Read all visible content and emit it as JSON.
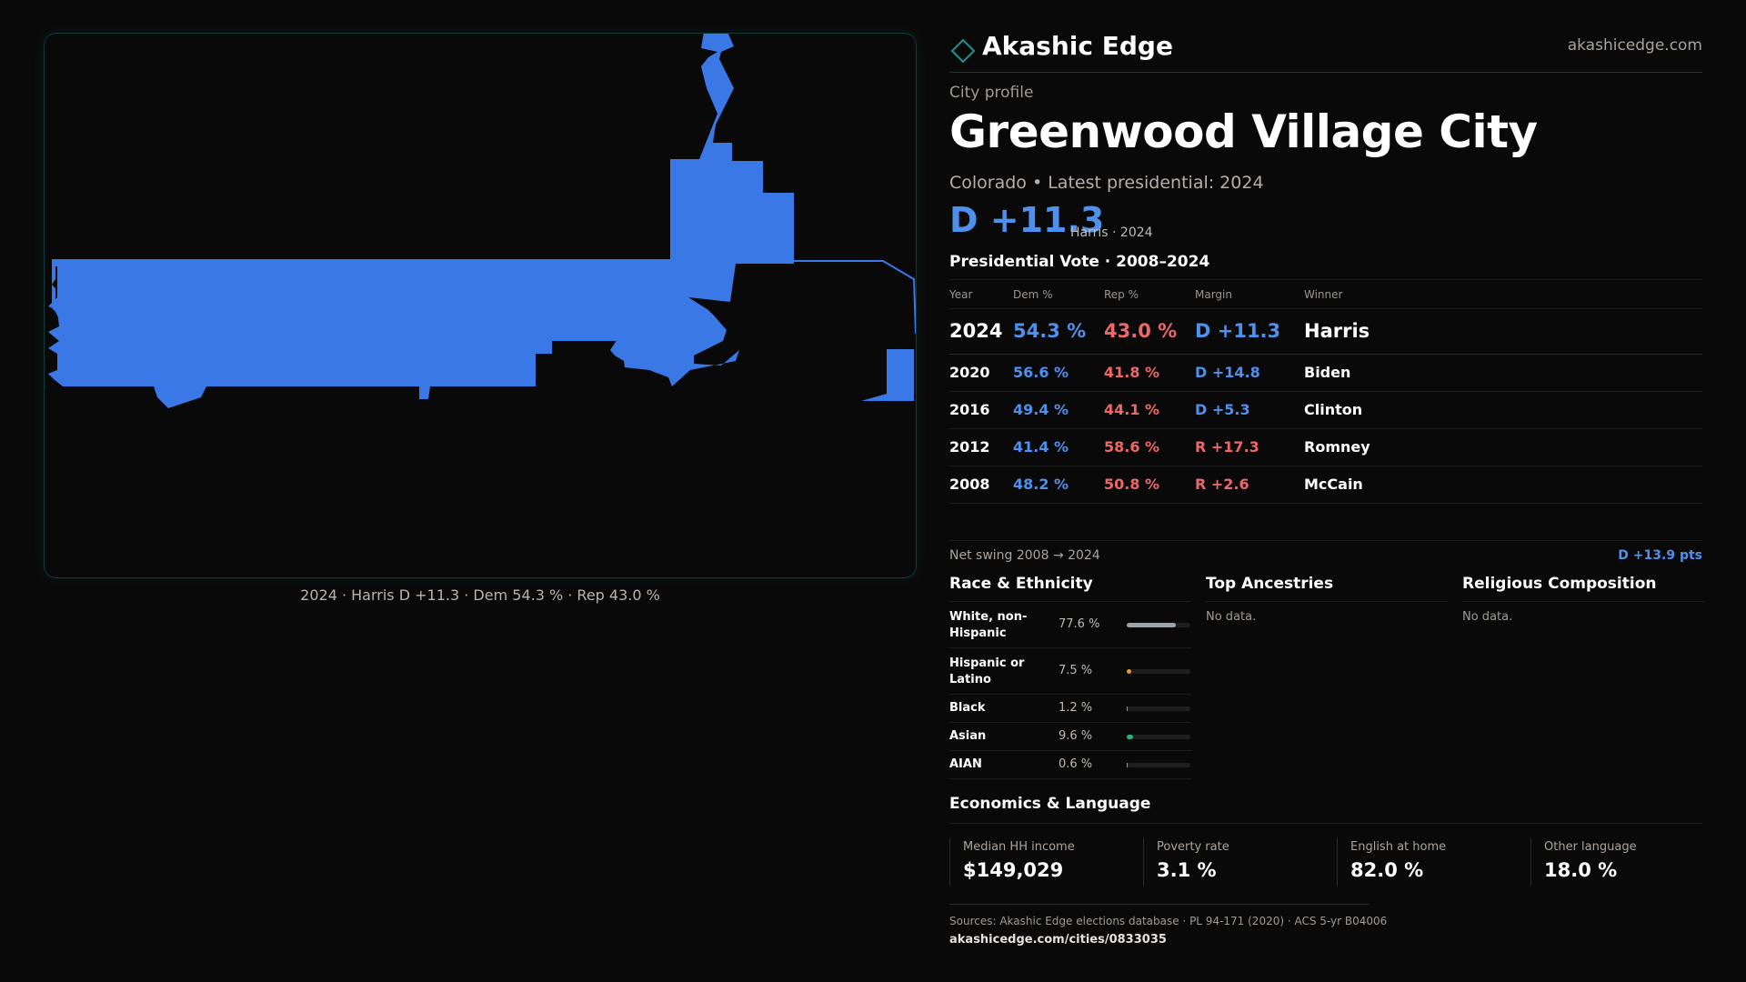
{
  "brand": {
    "name": "Akashic Edge",
    "url": "akashicedge.com",
    "logo_icon": "diamond-icon",
    "accent": "#1f8f94"
  },
  "profile": {
    "kicker": "City profile",
    "title": "Greenwood Village City",
    "subtitle": "Colorado • Latest presidential: 2024",
    "headline_margin": "D +11.3",
    "headline_note": "Harris · 2024"
  },
  "map": {
    "fill_color": "#3a78e6",
    "caption": "2024 · Harris D +11.3 · Dem 54.3 % · Rep 43.0 %"
  },
  "vote_table": {
    "title": "Presidential Vote · 2008–2024",
    "headers": {
      "year": "Year",
      "dem": "Dem %",
      "rep": "Rep %",
      "margin": "Margin",
      "winner": "Winner"
    },
    "rows": [
      {
        "year": "2024",
        "dem": "54.3 %",
        "rep": "43.0 %",
        "margin": "D +11.3",
        "winner": "Harris",
        "party": "D"
      },
      {
        "year": "2020",
        "dem": "56.6 %",
        "rep": "41.8 %",
        "margin": "D +14.8",
        "winner": "Biden",
        "party": "D"
      },
      {
        "year": "2016",
        "dem": "49.4 %",
        "rep": "44.1 %",
        "margin": "D +5.3",
        "winner": "Clinton",
        "party": "D"
      },
      {
        "year": "2012",
        "dem": "41.4 %",
        "rep": "58.6 %",
        "margin": "R +17.3",
        "winner": "Romney",
        "party": "R"
      },
      {
        "year": "2008",
        "dem": "48.2 %",
        "rep": "50.8 %",
        "margin": "R +2.6",
        "winner": "McCain",
        "party": "R"
      }
    ],
    "swing_label": "Net swing 2008 → 2024",
    "swing_value": "D +13.9 pts"
  },
  "colors": {
    "dem": "#4f90ec",
    "rep": "#ec6868"
  },
  "race": {
    "title": "Race & Ethnicity",
    "rows": [
      {
        "label": "White, non-Hispanic",
        "pct": "77.6 %",
        "value": 77.6,
        "color": "#9aa3ad"
      },
      {
        "label": "Hispanic or Latino",
        "pct": "7.5 %",
        "value": 7.5,
        "color": "#e39a2a"
      },
      {
        "label": "Black",
        "pct": "1.2 %",
        "value": 1.2,
        "color": "#8a8fe0"
      },
      {
        "label": "Asian",
        "pct": "9.6 %",
        "value": 9.6,
        "color": "#22b38a"
      },
      {
        "label": "AIAN",
        "pct": "0.6 %",
        "value": 0.6,
        "color": "#d9863a"
      }
    ]
  },
  "ancestries": {
    "title": "Top Ancestries",
    "empty": "No data."
  },
  "religion": {
    "title": "Religious Composition",
    "empty": "No data."
  },
  "economics": {
    "title": "Economics & Language",
    "cells": [
      {
        "label": "Median HH income",
        "value": "$149,029"
      },
      {
        "label": "Poverty rate",
        "value": "3.1 %"
      },
      {
        "label": "English at home",
        "value": "82.0 %"
      },
      {
        "label": "Other language",
        "value": "18.0 %"
      }
    ]
  },
  "footer": {
    "sources": "Sources: Akashic Edge elections database · PL 94-171 (2020) · ACS 5-yr B04006",
    "url": "akashicedge.com/cities/0833035"
  }
}
